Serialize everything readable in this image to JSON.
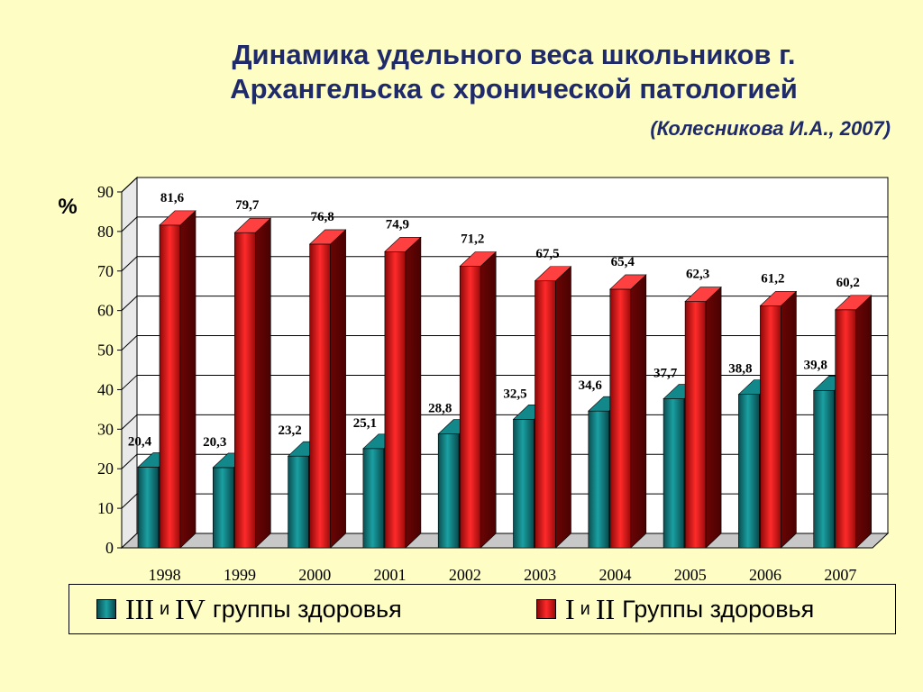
{
  "title_line1": "Динамика удельного веса школьников г.",
  "title_line2": "Архангельска с хронической патологией",
  "source": "(Колесникова И.А., 2007)",
  "colors": {
    "group_3_4": "#0e6a6e",
    "group_1_2": "#d11212",
    "background": "#fdfdc4",
    "title": "#1f2a6b"
  },
  "legend": {
    "series1": {
      "roman_a": "III",
      "conj": "и",
      "roman_b": "IV",
      "text": "группы здоровья"
    },
    "series2": {
      "roman_a": "I",
      "conj": "и",
      "roman_b": "II",
      "text": "Группы здоровья"
    }
  },
  "chart_data": {
    "type": "bar",
    "ylabel": "%",
    "ylim": [
      0,
      90
    ],
    "yticks": [
      0,
      10,
      20,
      30,
      40,
      50,
      60,
      70,
      80,
      90
    ],
    "categories": [
      "1998",
      "1999",
      "2000",
      "2001",
      "2002",
      "2003",
      "2004",
      "2005",
      "2006",
      "2007"
    ],
    "series": [
      {
        "name": "III и IV группы здоровья",
        "values": [
          20.4,
          20.3,
          23.2,
          25.1,
          28.8,
          32.5,
          34.6,
          37.7,
          38.8,
          39.8
        ],
        "labels": [
          "20,4",
          "20,3",
          "23,2",
          "25,1",
          "28,8",
          "32,5",
          "34,6",
          "37,7",
          "38,8",
          "39,8"
        ]
      },
      {
        "name": "I и II Группы здоровья",
        "values": [
          81.6,
          79.7,
          76.8,
          74.9,
          71.2,
          67.5,
          65.4,
          62.3,
          61.2,
          60.2
        ],
        "labels": [
          "81,6",
          "79,7",
          "76,8",
          "74,9",
          "71,2",
          "67,5",
          "65,4",
          "62,3",
          "61,2",
          "60,2"
        ]
      }
    ],
    "grid": true,
    "legend_position": "bottom",
    "style": "3d-columns"
  }
}
